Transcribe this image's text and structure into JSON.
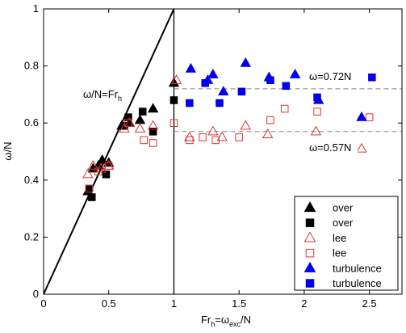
{
  "chart_data": {
    "type": "scatter",
    "xlabel": {
      "main": "Fr",
      "sub1": "h",
      "mid": "=ω",
      "sub2": "exc",
      "tail": "/N"
    },
    "ylabel": "ω/N",
    "xlim": [
      0,
      2.75
    ],
    "ylim": [
      0,
      1
    ],
    "xticks": [
      0,
      0.5,
      1,
      1.5,
      2,
      2.5
    ],
    "xtick_labels": [
      "0",
      "0.5",
      "1",
      "1.5",
      "2",
      "2.5"
    ],
    "yticks": [
      0,
      0.2,
      0.4,
      0.6,
      0.8,
      1
    ],
    "ytick_labels": [
      "0",
      "0.2",
      "0.4",
      "0.6",
      "0.8",
      "1"
    ],
    "grid": false,
    "legend_position": "bottom-right",
    "series": [
      {
        "name": "over",
        "marker": "triangle",
        "filled": true,
        "color": "#000000",
        "points": [
          [
            0.34,
            0.36
          ],
          [
            0.38,
            0.44
          ],
          [
            0.42,
            0.45
          ],
          [
            0.45,
            0.47
          ],
          [
            0.5,
            0.46
          ],
          [
            0.6,
            0.59
          ],
          [
            0.66,
            0.6
          ],
          [
            0.74,
            0.61
          ],
          [
            0.84,
            0.65
          ],
          [
            1.0,
            0.74
          ]
        ]
      },
      {
        "name": "over",
        "marker": "square",
        "filled": true,
        "color": "#000000",
        "points": [
          [
            0.35,
            0.37
          ],
          [
            0.37,
            0.34
          ],
          [
            0.48,
            0.42
          ],
          [
            0.62,
            0.59
          ],
          [
            0.65,
            0.62
          ],
          [
            0.76,
            0.64
          ],
          [
            0.84,
            0.57
          ],
          [
            1.0,
            0.68
          ]
        ]
      },
      {
        "name": "lee",
        "marker": "triangle",
        "filled": false,
        "color": "#dd3333",
        "points": [
          [
            0.34,
            0.42
          ],
          [
            0.38,
            0.45
          ],
          [
            0.44,
            0.44
          ],
          [
            0.5,
            0.45
          ],
          [
            0.62,
            0.58
          ],
          [
            0.66,
            0.6
          ],
          [
            0.74,
            0.58
          ],
          [
            0.84,
            0.59
          ],
          [
            1.02,
            0.75
          ],
          [
            1.12,
            0.55
          ],
          [
            1.3,
            0.57
          ],
          [
            1.37,
            0.55
          ],
          [
            1.55,
            0.59
          ],
          [
            1.72,
            0.56
          ],
          [
            2.09,
            0.57
          ],
          [
            2.44,
            0.51
          ]
        ]
      },
      {
        "name": "lee",
        "marker": "square",
        "filled": false,
        "color": "#dd3333",
        "points": [
          [
            0.35,
            0.37
          ],
          [
            0.42,
            0.43
          ],
          [
            0.5,
            0.45
          ],
          [
            0.65,
            0.6
          ],
          [
            0.77,
            0.54
          ],
          [
            0.84,
            0.53
          ],
          [
            1.0,
            0.6
          ],
          [
            1.12,
            0.54
          ],
          [
            1.22,
            0.55
          ],
          [
            1.32,
            0.54
          ],
          [
            1.5,
            0.55
          ],
          [
            1.74,
            0.61
          ],
          [
            1.85,
            0.65
          ],
          [
            2.1,
            0.64
          ],
          [
            2.5,
            0.62
          ]
        ]
      },
      {
        "name": "turbulence",
        "marker": "triangle",
        "filled": true,
        "color": "#0000ee",
        "points": [
          [
            1.13,
            0.79
          ],
          [
            1.26,
            0.75
          ],
          [
            1.3,
            0.77
          ],
          [
            1.38,
            0.71
          ],
          [
            1.55,
            0.81
          ],
          [
            1.73,
            0.76
          ],
          [
            1.93,
            0.77
          ],
          [
            2.11,
            0.68
          ],
          [
            2.44,
            0.62
          ]
        ]
      },
      {
        "name": "turbulence",
        "marker": "square",
        "filled": true,
        "color": "#0000ee",
        "points": [
          [
            1.12,
            0.67
          ],
          [
            1.24,
            0.74
          ],
          [
            1.35,
            0.67
          ],
          [
            1.52,
            0.71
          ],
          [
            1.74,
            0.75
          ],
          [
            1.86,
            0.73
          ],
          [
            2.1,
            0.69
          ],
          [
            2.52,
            0.76
          ]
        ]
      }
    ],
    "reference_line": {
      "label": {
        "main": "ω/N=Fr",
        "sub": "h"
      },
      "from": [
        0,
        0
      ],
      "to": [
        1,
        1
      ]
    },
    "vertical_line": {
      "x": 1
    },
    "hlines": [
      {
        "y": 0.72,
        "label": "ω=0.72N"
      },
      {
        "y": 0.57,
        "label": "ω=0.57N"
      }
    ]
  }
}
